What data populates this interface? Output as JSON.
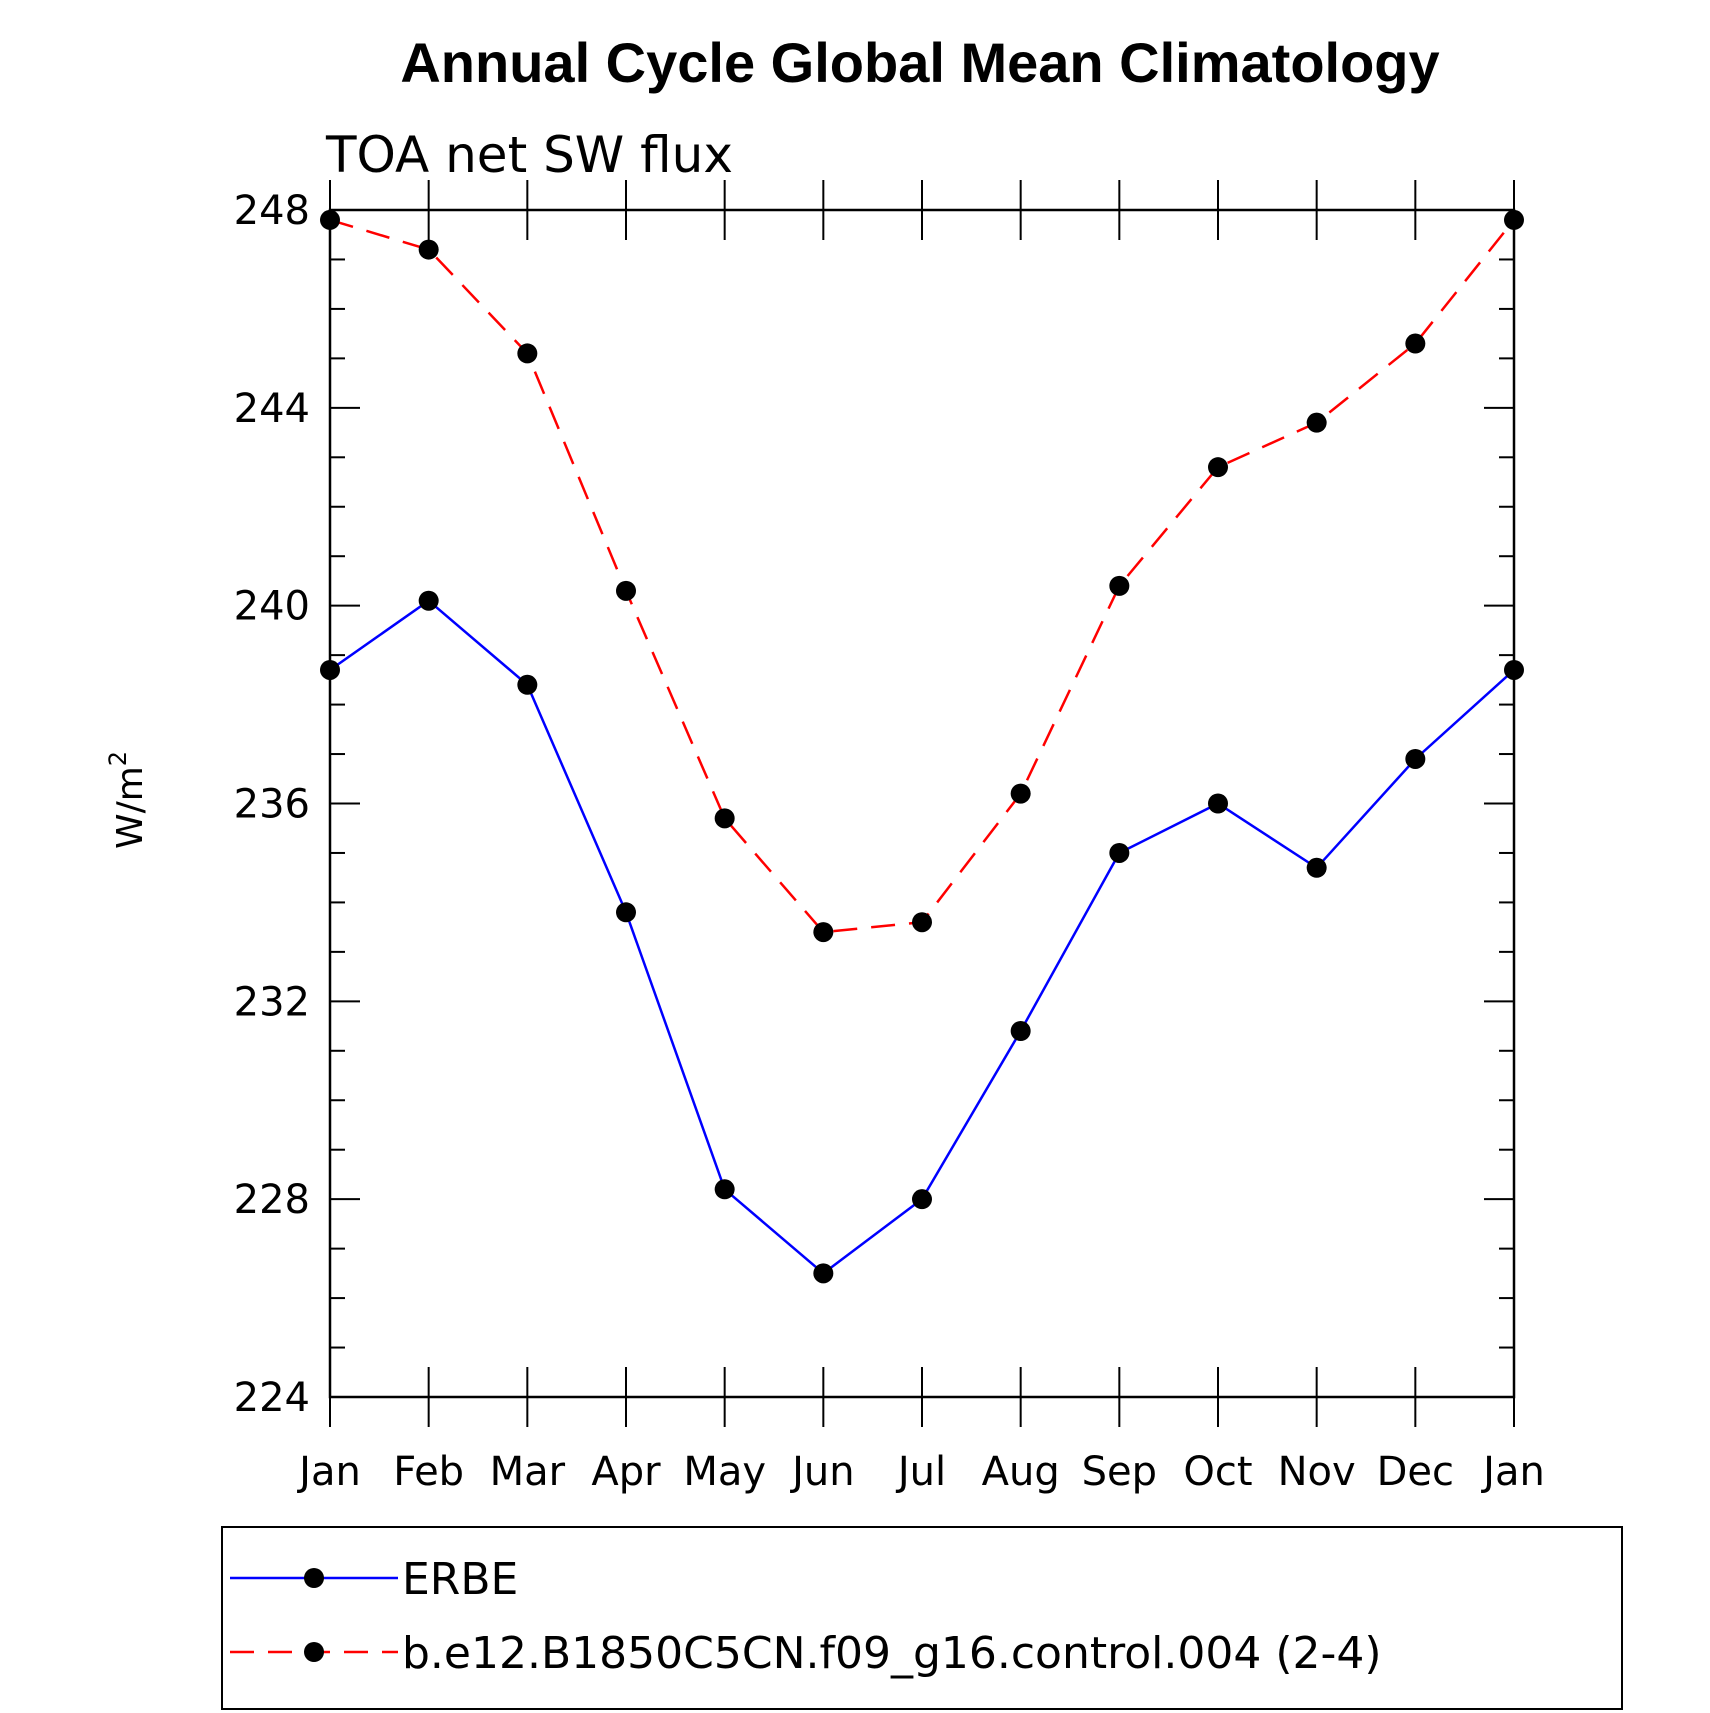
{
  "chart_data": {
    "type": "line",
    "title": "Annual Cycle Global Mean Climatology",
    "subtitle": "TOA net SW flux",
    "ylabel": "W/m",
    "ylabel_superscript": "2",
    "xlabel": "",
    "categories": [
      "Jan",
      "Feb",
      "Mar",
      "Apr",
      "May",
      "Jun",
      "Jul",
      "Aug",
      "Sep",
      "Oct",
      "Nov",
      "Dec",
      "Jan"
    ],
    "ylim": [
      224,
      248
    ],
    "yticks": [
      224,
      228,
      232,
      236,
      240,
      244,
      248
    ],
    "grid": false,
    "legend_position": "bottom",
    "series": [
      {
        "name": "ERBE",
        "color": "#0000ff",
        "line_style": "solid",
        "marker": "circle",
        "values": [
          238.7,
          240.1,
          238.4,
          233.8,
          228.2,
          226.5,
          228.0,
          231.4,
          235.0,
          236.0,
          234.7,
          236.9,
          238.7
        ]
      },
      {
        "name": "b.e12.B1850C5CN.f09_g16.control.004 (2-4)",
        "color": "#ff0000",
        "line_style": "dashed",
        "marker": "circle",
        "values": [
          247.8,
          247.2,
          245.1,
          240.3,
          235.7,
          233.4,
          233.6,
          236.2,
          240.4,
          242.8,
          243.7,
          245.3,
          247.8
        ]
      }
    ]
  }
}
